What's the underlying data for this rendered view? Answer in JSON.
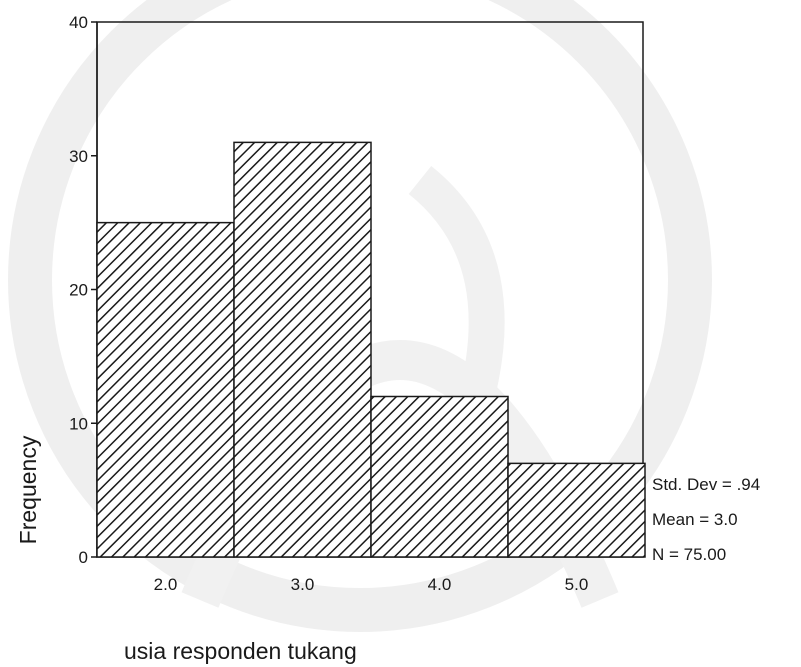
{
  "chart_data": {
    "type": "bar",
    "categories": [
      "2.0",
      "3.0",
      "4.0",
      "5.0"
    ],
    "values": [
      25,
      31,
      12,
      7
    ],
    "title": "",
    "xlabel": "usia responden tukang",
    "ylabel": "Frequency",
    "ylim": [
      0,
      40
    ],
    "yticks": [
      "0",
      "10",
      "20",
      "30",
      "40"
    ],
    "grid": false,
    "bar_fill": "diagonal-hatch",
    "stats": [
      "Std. Dev = .94",
      "Mean = 3.0",
      "N = 75.00"
    ],
    "colors": {
      "ink": "#1a1a1a",
      "background": "#ffffff",
      "watermark": "#ededed"
    }
  }
}
